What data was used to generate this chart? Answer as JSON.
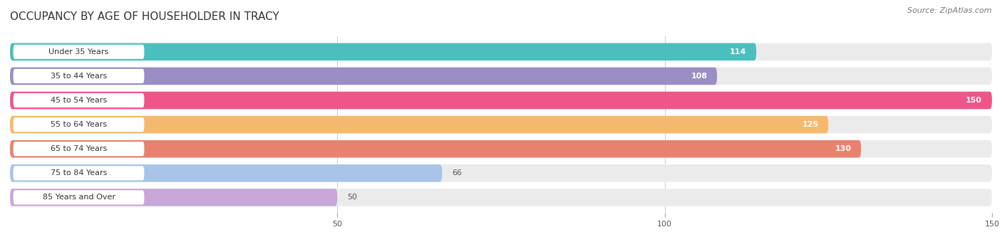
{
  "title": "OCCUPANCY BY AGE OF HOUSEHOLDER IN TRACY",
  "source": "Source: ZipAtlas.com",
  "categories": [
    "Under 35 Years",
    "35 to 44 Years",
    "45 to 54 Years",
    "55 to 64 Years",
    "65 to 74 Years",
    "75 to 84 Years",
    "85 Years and Over"
  ],
  "values": [
    114,
    108,
    150,
    125,
    130,
    66,
    50
  ],
  "bar_colors": [
    "#4BBFBE",
    "#9B8EC4",
    "#F0558A",
    "#F5B96E",
    "#E8826E",
    "#A8C4E8",
    "#C8A8D8"
  ],
  "bar_bg_color": "#EBEBEB",
  "label_bg_color": "#FFFFFF",
  "xlim_max": 155,
  "xlim_data_max": 150,
  "xticks": [
    50,
    100,
    150
  ],
  "figsize": [
    14.06,
    3.4
  ],
  "dpi": 100,
  "title_fontsize": 11,
  "label_fontsize": 8,
  "value_fontsize": 8,
  "source_fontsize": 8,
  "bg_color": "#FFFFFF",
  "label_text_color": "#333333",
  "value_color_inside": "#FFFFFF",
  "value_color_outside": "#555555",
  "grid_color": "#CCCCCC"
}
